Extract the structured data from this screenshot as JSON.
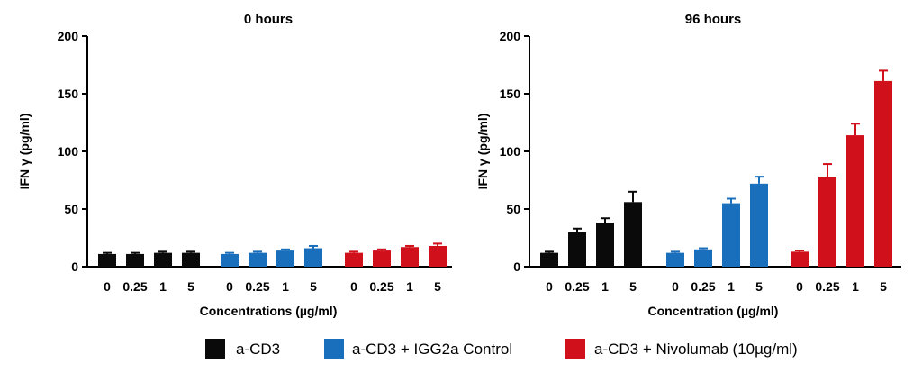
{
  "chart_data": [
    {
      "type": "bar",
      "title": "0 hours",
      "xlabel": "Concentrations (µg/ml)",
      "ylabel": "IFN γ (pg/ml)",
      "ylim": [
        0,
        200
      ],
      "yticks": [
        0,
        50,
        100,
        150,
        200
      ],
      "categories": [
        "0",
        "0.25",
        "1",
        "5"
      ],
      "series": [
        {
          "name": "a-CD3",
          "color": "#0a0a0a",
          "values": [
            11,
            11,
            12,
            12
          ],
          "errors": [
            1,
            1,
            1,
            1
          ]
        },
        {
          "name": "a-CD3 + IGG2a Control",
          "color": "#1a6fbd",
          "values": [
            11,
            12,
            14,
            16
          ],
          "errors": [
            1,
            1,
            1,
            2
          ]
        },
        {
          "name": "a-CD3 + Nivolumab (10µg/ml)",
          "color": "#d0101a",
          "values": [
            12,
            14,
            17,
            18
          ],
          "errors": [
            1,
            1,
            1,
            2
          ]
        }
      ]
    },
    {
      "type": "bar",
      "title": "96 hours",
      "xlabel": "Concentration (µg/ml)",
      "ylabel": "IFN γ (pg/ml)",
      "ylim": [
        0,
        200
      ],
      "yticks": [
        0,
        50,
        100,
        150,
        200
      ],
      "categories": [
        "0",
        "0.25",
        "1",
        "5"
      ],
      "series": [
        {
          "name": "a-CD3",
          "color": "#0a0a0a",
          "values": [
            12,
            30,
            38,
            56
          ],
          "errors": [
            1,
            3,
            4,
            9
          ]
        },
        {
          "name": "a-CD3 + IGG2a Control",
          "color": "#1a6fbd",
          "values": [
            12,
            15,
            55,
            72
          ],
          "errors": [
            1,
            1,
            4,
            6
          ]
        },
        {
          "name": "a-CD3 + Nivolumab (10µg/ml)",
          "color": "#d0101a",
          "values": [
            13,
            78,
            114,
            161
          ],
          "errors": [
            1,
            11,
            10,
            9
          ]
        }
      ]
    }
  ],
  "legend": {
    "placement": "bottom",
    "items": [
      {
        "label": "a-CD3",
        "color": "#0a0a0a"
      },
      {
        "label": "a-CD3 + IGG2a Control",
        "color": "#1a6fbd"
      },
      {
        "label": "a-CD3 + Nivolumab (10µg/ml)",
        "color": "#d0101a"
      }
    ]
  }
}
